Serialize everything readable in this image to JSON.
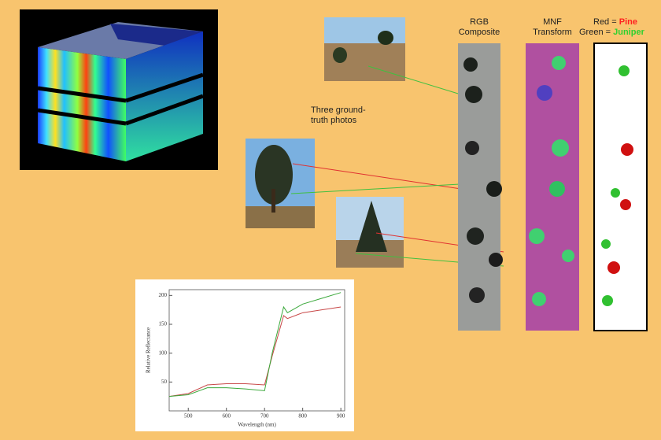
{
  "slide": {
    "ground_truth_label": "Three ground-truth photos",
    "panels": [
      {
        "label": "RGB Composite"
      },
      {
        "label": "MNF Transform"
      }
    ],
    "legend": [
      {
        "key": "Red =",
        "name": "Pine",
        "color": "#ff2020"
      },
      {
        "key": "Green =",
        "name": "Juniper",
        "color": "#30d030"
      }
    ],
    "spectrum_plot": {
      "x_label": "Wavelength (nm)",
      "y_label": "Relative Reflectance",
      "xlim": [
        450,
        910
      ],
      "ylim": [
        0,
        210
      ],
      "xticks": [
        500,
        600,
        700,
        800,
        900
      ],
      "yticks": [
        50,
        100,
        150,
        200
      ],
      "x": [
        450,
        500,
        550,
        600,
        650,
        700,
        720,
        750,
        760,
        800,
        850,
        900
      ],
      "series": [
        {
          "color": "#c84848",
          "values": [
            25,
            30,
            45,
            47,
            47,
            45,
            95,
            165,
            160,
            170,
            175,
            180
          ]
        },
        {
          "color": "#3aa83a",
          "values": [
            25,
            28,
            40,
            40,
            38,
            35,
            100,
            180,
            170,
            185,
            195,
            205
          ]
        }
      ]
    }
  }
}
